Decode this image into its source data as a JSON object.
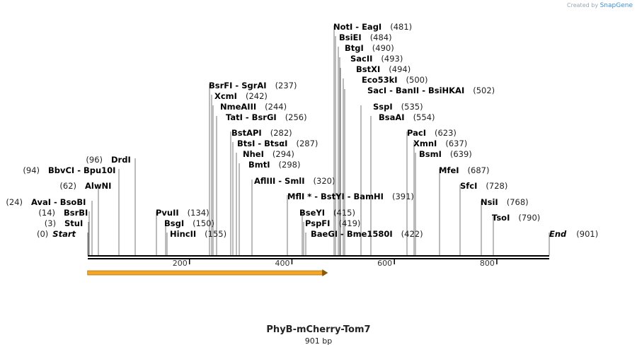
{
  "branding": {
    "created_by": "Created by",
    "product": "SnapGene"
  },
  "map": {
    "title": "PhyB-mCherry-Tom7",
    "length_label": "901 bp",
    "length": 901
  },
  "ticks": [
    "200",
    "400",
    "600",
    "800"
  ],
  "tick_values": [
    200,
    400,
    600,
    800
  ],
  "feature": {
    "name": "orf-arrow",
    "start": 1,
    "end": 480,
    "color": "#f5a623"
  },
  "sites": [
    {
      "pos": "(0)",
      "name": "Start",
      "loc": 0,
      "special": true
    },
    {
      "pos": "(3)",
      "name": "StuI",
      "loc": 3
    },
    {
      "pos": "(14)",
      "name": "BsrBI",
      "loc": 14
    },
    {
      "pos": "(24)",
      "name": "AvaI - BsoBI",
      "loc": 24
    },
    {
      "pos": "(62)",
      "name": "AlwNI",
      "loc": 62
    },
    {
      "pos": "(94)",
      "name": "BbvCI - Bpu10I",
      "loc": 94
    },
    {
      "pos": "(96)",
      "name": "DrdI",
      "loc": 96
    },
    {
      "name": "PvuII",
      "pos": "(134)",
      "loc": 134
    },
    {
      "name": "BsgI",
      "pos": "(150)",
      "loc": 150
    },
    {
      "name": "HincII",
      "pos": "(155)",
      "loc": 155
    },
    {
      "name": "BsrFI - SgrAI",
      "pos": "(237)",
      "loc": 237
    },
    {
      "name": "XcmI",
      "pos": "(242)",
      "loc": 242
    },
    {
      "name": "NmeAIII",
      "pos": "(244)",
      "loc": 244
    },
    {
      "name": "TatI - BsrGI",
      "pos": "(256)",
      "loc": 256
    },
    {
      "name": "BstAPI",
      "pos": "(282)",
      "loc": 282
    },
    {
      "name": "BtsI - BtsαI",
      "pos": "(287)",
      "loc": 287
    },
    {
      "name": "NheI",
      "pos": "(294)",
      "loc": 294
    },
    {
      "name": "BmtI",
      "pos": "(298)",
      "loc": 298
    },
    {
      "name": "AflIII - SmlI",
      "pos": "(320)",
      "loc": 320
    },
    {
      "name": "MflI * - BstYI - BamHI",
      "pos": "(391)",
      "loc": 391
    },
    {
      "name": "BseYI",
      "pos": "(415)",
      "loc": 415
    },
    {
      "name": "PspFI",
      "pos": "(419)",
      "loc": 419
    },
    {
      "name": "BaeGI - Bme1580I",
      "pos": "(422)",
      "loc": 422
    },
    {
      "name": "NotI - EagI",
      "pos": "(481)",
      "loc": 481
    },
    {
      "name": "BsiEI",
      "pos": "(484)",
      "loc": 484
    },
    {
      "name": "BtgI",
      "pos": "(490)",
      "loc": 490
    },
    {
      "name": "SacII",
      "pos": "(493)",
      "loc": 493
    },
    {
      "name": "BstXI",
      "pos": "(494)",
      "loc": 494
    },
    {
      "name": "Eco53kI",
      "pos": "(500)",
      "loc": 500
    },
    {
      "name": "SacI - BanII - BsiHKAI",
      "pos": "(502)",
      "loc": 502
    },
    {
      "name": "SspI",
      "pos": "(535)",
      "loc": 535
    },
    {
      "name": "BsaAI",
      "pos": "(554)",
      "loc": 554
    },
    {
      "name": "PacI",
      "pos": "(623)",
      "loc": 623
    },
    {
      "name": "XmnI",
      "pos": "(637)",
      "loc": 637
    },
    {
      "name": "BsmI",
      "pos": "(639)",
      "loc": 639
    },
    {
      "name": "MfeI",
      "pos": "(687)",
      "loc": 687
    },
    {
      "name": "SfcI",
      "pos": "(728)",
      "loc": 728
    },
    {
      "name": "NsiI",
      "pos": "(768)",
      "loc": 768
    },
    {
      "name": "TsoI",
      "pos": "(790)",
      "loc": 790
    },
    {
      "name": "End",
      "pos": "(901)",
      "loc": 901,
      "special": true
    }
  ]
}
